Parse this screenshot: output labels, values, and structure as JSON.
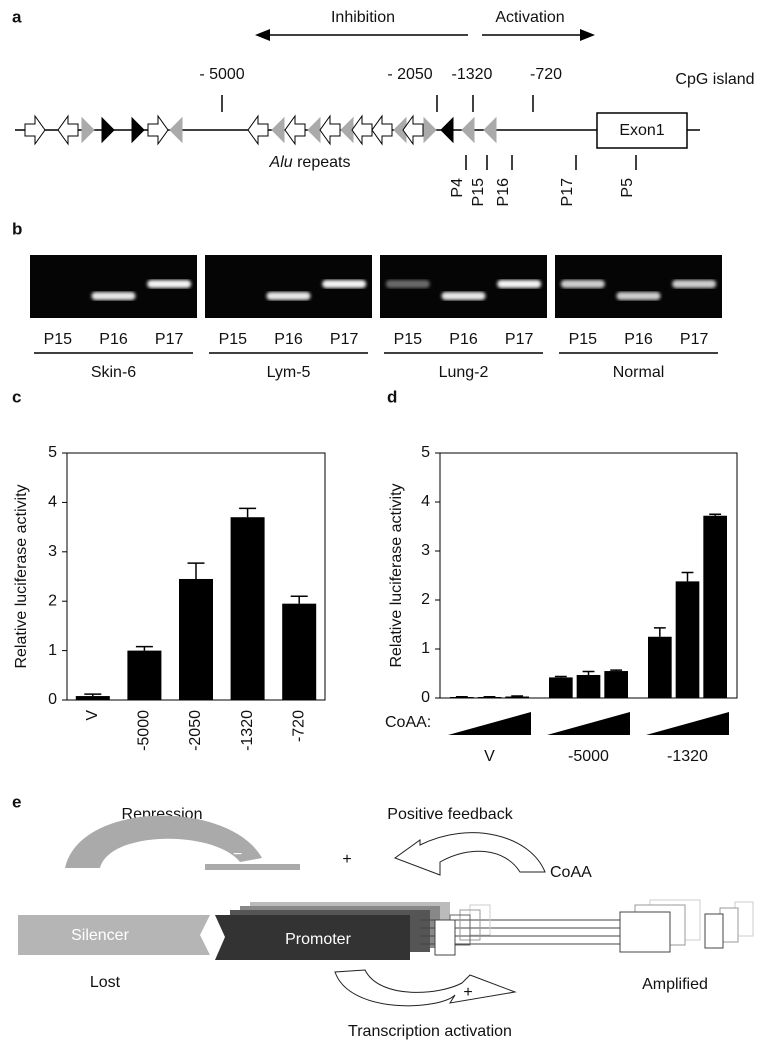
{
  "panel_a": {
    "label": "a",
    "inhibition": "Inhibition",
    "activation": "Activation",
    "positions": [
      "- 5000",
      "- 2050",
      "-1320",
      "-720"
    ],
    "cpg": "CpG island",
    "exon": "Exon1",
    "alu_italic": "Alu",
    "alu_rest": "repeats",
    "primers": [
      "P4",
      "P15",
      "P16",
      "P17",
      "P5"
    ]
  },
  "panel_b": {
    "label": "b",
    "gels": [
      {
        "name": "Skin-6",
        "lanes": [
          "P15",
          "P16",
          "P17"
        ]
      },
      {
        "name": "Lym-5",
        "lanes": [
          "P15",
          "P16",
          "P17"
        ]
      },
      {
        "name": "Lung-2",
        "lanes": [
          "P15",
          "P16",
          "P17"
        ]
      },
      {
        "name": "Normal",
        "lanes": [
          "P15",
          "P16",
          "P17"
        ]
      }
    ]
  },
  "chart_data": [
    {
      "type": "bar",
      "panel_label": "c",
      "y_label": "Relative luciferase activity",
      "categories": [
        "V",
        "-5000",
        "-2050",
        "-1320",
        "-720"
      ],
      "values": [
        0.08,
        1.0,
        2.45,
        3.7,
        1.95
      ],
      "errors": [
        0.04,
        0.08,
        0.32,
        0.18,
        0.15
      ],
      "color": "#000000",
      "ylim": [
        0,
        5
      ],
      "yticks": [
        0,
        1,
        2,
        3,
        4,
        5
      ]
    },
    {
      "type": "grouped_bar",
      "panel_label": "d",
      "y_label": "Relative luciferase activity",
      "annotation": "CoAA:",
      "categories": [
        "V",
        "-5000",
        "-1320"
      ],
      "values": [
        [
          0.02,
          0.02,
          0.03
        ],
        [
          0.42,
          0.47,
          0.55
        ],
        [
          1.25,
          2.38,
          3.72
        ]
      ],
      "errors": [
        [
          0.005,
          0.005,
          0.01
        ],
        [
          0.02,
          0.07,
          0.02
        ],
        [
          0.18,
          0.18,
          0.03
        ]
      ],
      "color": "#000000",
      "ylim": [
        0,
        5
      ],
      "yticks": [
        0,
        1,
        2,
        3,
        4,
        5
      ]
    }
  ],
  "panel_e": {
    "label": "e",
    "repression": "Repression",
    "minus": "−",
    "positive_feedback": "Positive feedback",
    "plus_top": "+",
    "coaa": "CoAA",
    "silencer": "Silencer",
    "promoter": "Promoter",
    "lost": "Lost",
    "amplified": "Amplified",
    "plus_bottom": "+",
    "transcription": "Transcription activation"
  }
}
